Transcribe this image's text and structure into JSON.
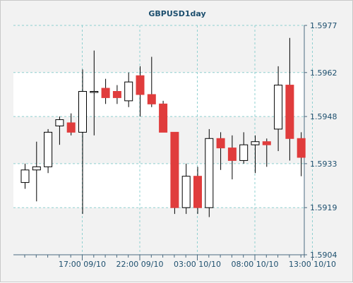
{
  "chart_data": {
    "type": "candlestick",
    "title": "GBPUSD1day",
    "xlabel": "",
    "ylabel": "",
    "ylim": [
      1.5904,
      1.5977
    ],
    "y_ticks": [
      "1.5977",
      "1.5962",
      "1.5948",
      "1.5933",
      "1.5919",
      "1.5904"
    ],
    "x_ticks": [
      {
        "index": 5,
        "label": "17:00 09/10"
      },
      {
        "index": 10,
        "label": "22:00 09/10"
      },
      {
        "index": 15,
        "label": "03:00 10/10"
      },
      {
        "index": 20,
        "label": "08:00 10/10"
      },
      {
        "index": 25,
        "label": "13:00 10/10"
      }
    ],
    "grid": true,
    "colors": {
      "bearish": "#e03c3c",
      "bullish": "#ffffff",
      "outline": "#000000",
      "grid": "#8fd0d0",
      "axis_text": "#1d4f6e",
      "band": "#ffffff",
      "plot_bg": "#f2f2f2"
    },
    "candles": [
      {
        "o": 1.5927,
        "h": 1.5933,
        "l": 1.5925,
        "c": 1.5931
      },
      {
        "o": 1.5931,
        "h": 1.594,
        "l": 1.5921,
        "c": 1.5932
      },
      {
        "o": 1.5932,
        "h": 1.5944,
        "l": 1.593,
        "c": 1.5943
      },
      {
        "o": 1.5945,
        "h": 1.5948,
        "l": 1.5939,
        "c": 1.5947
      },
      {
        "o": 1.5946,
        "h": 1.5949,
        "l": 1.5942,
        "c": 1.5943
      },
      {
        "o": 1.5943,
        "h": 1.5963,
        "l": 1.5917,
        "c": 1.5956
      },
      {
        "o": 1.5956,
        "h": 1.5969,
        "l": 1.5942,
        "c": 1.5956
      },
      {
        "o": 1.5957,
        "h": 1.596,
        "l": 1.5952,
        "c": 1.5954
      },
      {
        "o": 1.5956,
        "h": 1.5958,
        "l": 1.5952,
        "c": 1.5954
      },
      {
        "o": 1.5953,
        "h": 1.5962,
        "l": 1.5951,
        "c": 1.5959
      },
      {
        "o": 1.5961,
        "h": 1.5964,
        "l": 1.5948,
        "c": 1.5955
      },
      {
        "o": 1.5955,
        "h": 1.5967,
        "l": 1.5951,
        "c": 1.5952
      },
      {
        "o": 1.5952,
        "h": 1.5953,
        "l": 1.5943,
        "c": 1.5943
      },
      {
        "o": 1.5943,
        "h": 1.5943,
        "l": 1.5917,
        "c": 1.5919
      },
      {
        "o": 1.5919,
        "h": 1.5933,
        "l": 1.5917,
        "c": 1.5929
      },
      {
        "o": 1.5929,
        "h": 1.5932,
        "l": 1.5917,
        "c": 1.5919
      },
      {
        "o": 1.5919,
        "h": 1.5944,
        "l": 1.5916,
        "c": 1.5941
      },
      {
        "o": 1.5941,
        "h": 1.5943,
        "l": 1.5931,
        "c": 1.5938
      },
      {
        "o": 1.5938,
        "h": 1.5942,
        "l": 1.5928,
        "c": 1.5934
      },
      {
        "o": 1.5934,
        "h": 1.5943,
        "l": 1.5933,
        "c": 1.5939
      },
      {
        "o": 1.5939,
        "h": 1.5942,
        "l": 1.593,
        "c": 1.594
      },
      {
        "o": 1.594,
        "h": 1.5941,
        "l": 1.5932,
        "c": 1.5939
      },
      {
        "o": 1.5944,
        "h": 1.5964,
        "l": 1.5937,
        "c": 1.5958
      },
      {
        "o": 1.5958,
        "h": 1.5973,
        "l": 1.5934,
        "c": 1.5941
      },
      {
        "o": 1.5941,
        "h": 1.5943,
        "l": 1.5929,
        "c": 1.5935
      }
    ]
  }
}
